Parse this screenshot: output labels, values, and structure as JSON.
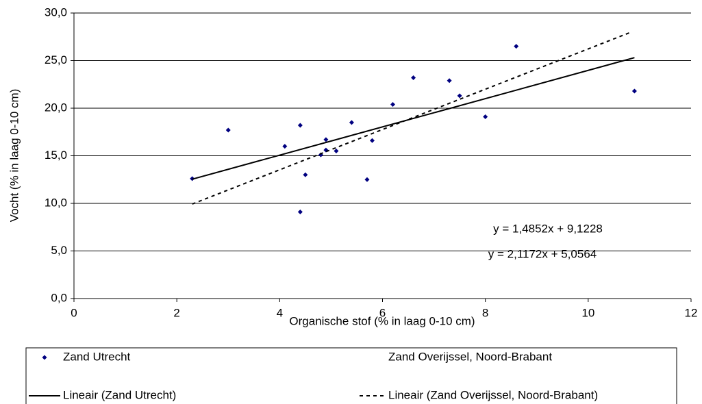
{
  "chart_data": {
    "type": "scatter",
    "x_label": "Organische stof (% in laag 0-10 cm)",
    "y_label": "Vocht (% in laag 0-10 cm)",
    "xlim": [
      0,
      12
    ],
    "xticks": [
      0,
      2,
      4,
      6,
      8,
      10,
      12
    ],
    "ylim": [
      0,
      30
    ],
    "yticks": [
      {
        "value": 0,
        "label": "0,0"
      },
      {
        "value": 5,
        "label": "5,0"
      },
      {
        "value": 10,
        "label": "10,0"
      },
      {
        "value": 15,
        "label": "15,0"
      },
      {
        "value": 20,
        "label": "20,0"
      },
      {
        "value": 25,
        "label": "25,0"
      },
      {
        "value": 30,
        "label": "30,0"
      }
    ],
    "grid": true,
    "series": [
      {
        "name": "Zand Utrecht",
        "style": "marker",
        "color": "#000080",
        "x": [
          2.3,
          3.0,
          4.1,
          4.4,
          4.4,
          4.5,
          4.8,
          4.9,
          4.9,
          5.1,
          5.4,
          5.7,
          5.8,
          6.2,
          6.6,
          7.3,
          7.5,
          8.0,
          8.6,
          10.9
        ],
        "values": [
          12.6,
          17.7,
          16.0,
          18.2,
          9.1,
          13.0,
          15.1,
          16.7,
          15.6,
          15.5,
          18.5,
          12.5,
          16.6,
          20.4,
          23.2,
          22.9,
          21.3,
          19.1,
          26.5,
          21.8
        ]
      },
      {
        "name": "Zand Overijssel, Noord-Brabant",
        "style": "none",
        "color": "#ffffff",
        "x": [],
        "values": []
      },
      {
        "name": "Lineair (Zand Utrecht)",
        "style": "line",
        "dash": false,
        "color": "#000000",
        "x": [
          2.3,
          10.9
        ],
        "values": [
          12.54,
          25.31
        ]
      },
      {
        "name": "Lineair (Zand Overijssel, Noord-Brabant)",
        "style": "line",
        "dash": true,
        "color": "#000000",
        "x": [
          2.3,
          10.8
        ],
        "values": [
          9.93,
          27.92
        ]
      }
    ],
    "annotations": [
      "y = 1,4852x + 9,1228",
      "y = 2,1172x + 5,0564"
    ]
  }
}
